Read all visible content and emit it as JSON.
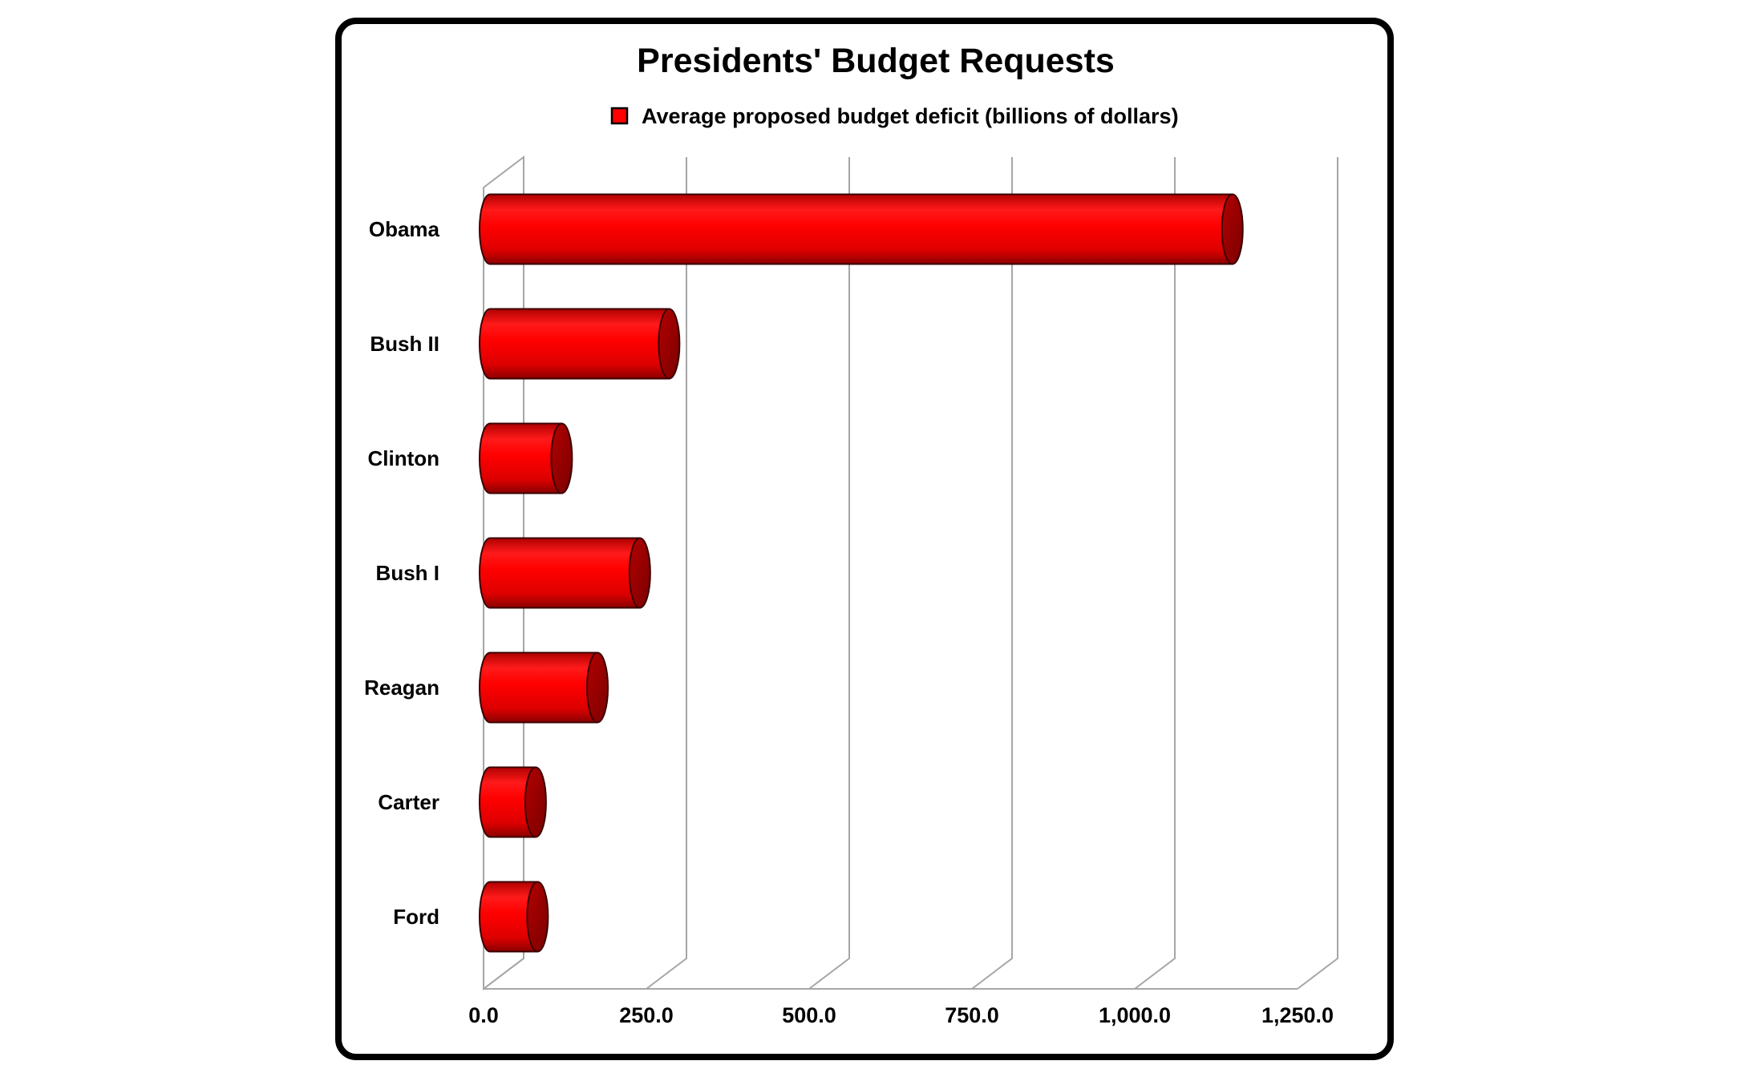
{
  "chart_data": {
    "type": "bar",
    "orientation": "horizontal",
    "title": "Presidents' Budget Requests",
    "categories": [
      "Obama",
      "Bush II",
      "Clinton",
      "Bush I",
      "Reagan",
      "Carter",
      "Ford"
    ],
    "series": [
      {
        "name": "Average proposed budget deficit (billions of dollars)",
        "values": [
          1145,
          280,
          115,
          235,
          170,
          75,
          78
        ]
      }
    ],
    "x_ticks": [
      "0.0",
      "250.0",
      "500.0",
      "750.0",
      "1,000.0",
      "1,250.0"
    ],
    "xlim": [
      0,
      1250
    ],
    "grid": true,
    "legend_position": "top",
    "bar_shape": "cylinder-3d",
    "colors": {
      "bar": "#ff0000",
      "bar_dark": "#990000",
      "grid": "#a6a6a6",
      "frame": "#000000"
    }
  }
}
